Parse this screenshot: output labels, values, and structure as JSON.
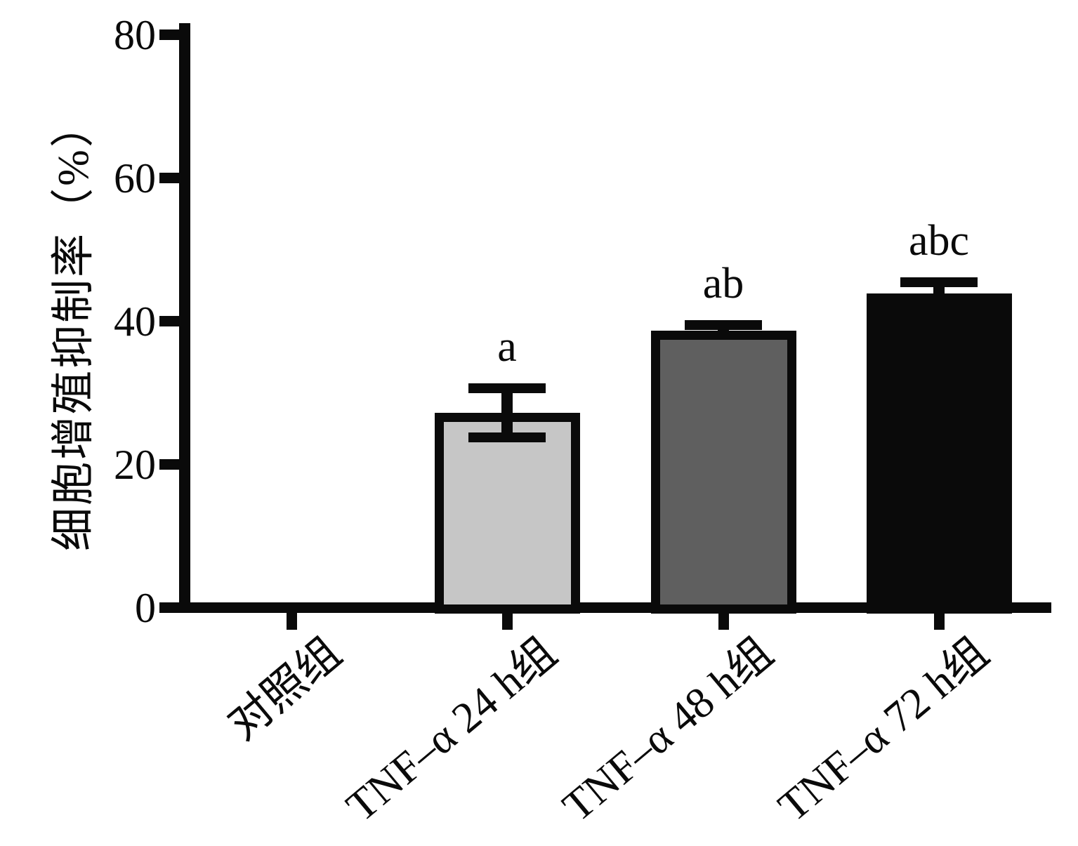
{
  "chart_data": {
    "type": "bar",
    "title": "",
    "xlabel": "",
    "ylabel": "细胞增殖抑制率（%）",
    "ylim": [
      0,
      80
    ],
    "yticks": [
      0,
      20,
      40,
      60,
      80
    ],
    "grid": false,
    "legend": null,
    "categories": [
      "对照组",
      "TNF–α 24 h组",
      "TNF–α 48 h组",
      "TNF–α 72 h组"
    ],
    "values": [
      0,
      27.2,
      38.7,
      43.9
    ],
    "errors": [
      {
        "low": 0,
        "high": 0
      },
      {
        "low": 3.4,
        "high": 3.4
      },
      {
        "low": 0,
        "high": 0.8
      },
      {
        "low": 0,
        "high": 1.5
      }
    ],
    "sig_labels": [
      "",
      "a",
      "ab",
      "abc"
    ],
    "bar_fill_colors": [
      "",
      "#c6c6c6",
      "#5f5f5f",
      "#0a0a0a"
    ],
    "bar_border_color": "#0a0a0a",
    "axis_color": "#0a0a0a",
    "background_color": "#ffffff"
  }
}
